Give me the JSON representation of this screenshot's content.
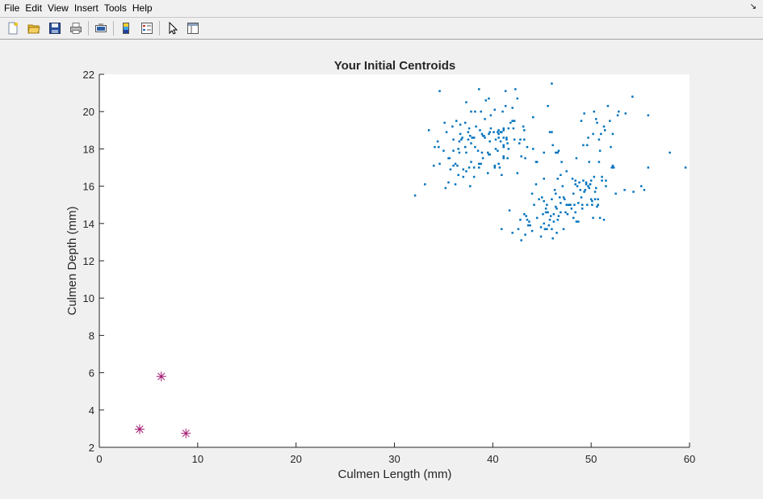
{
  "menu": {
    "file": "File",
    "edit": "Edit",
    "view": "View",
    "insert": "Insert",
    "tools": "Tools",
    "help": "Help"
  },
  "toolbar": {
    "items": [
      "new-figure",
      "open-file",
      "save-figure",
      "print-figure",
      "link-plot",
      "insert-colorbar",
      "insert-legend",
      "edit-plot",
      "property-inspector"
    ]
  },
  "chart_data": {
    "type": "scatter",
    "title": "Your Initial Centroids",
    "xlabel": "Culmen Length (mm)",
    "ylabel": "Culmen Depth (mm)",
    "xlim": [
      0,
      60
    ],
    "ylim": [
      2,
      22
    ],
    "xticks": [
      0,
      10,
      20,
      30,
      40,
      50,
      60
    ],
    "yticks": [
      2,
      4,
      6,
      8,
      10,
      12,
      14,
      16,
      18,
      20,
      22
    ],
    "grid": false,
    "legend": "none",
    "series": [
      {
        "marker": "point",
        "color": "#0072bd",
        "points": [
          [
            32.1,
            15.5
          ],
          [
            33.1,
            16.1
          ],
          [
            33.5,
            19.0
          ],
          [
            34.0,
            17.1
          ],
          [
            34.1,
            18.1
          ],
          [
            34.4,
            18.4
          ],
          [
            34.5,
            18.1
          ],
          [
            34.6,
            21.1
          ],
          [
            34.6,
            17.2
          ],
          [
            35.0,
            17.9
          ],
          [
            35.1,
            19.4
          ],
          [
            35.2,
            15.9
          ],
          [
            35.3,
            18.9
          ],
          [
            35.5,
            17.5
          ],
          [
            35.5,
            16.2
          ],
          [
            35.6,
            17.5
          ],
          [
            35.7,
            16.9
          ],
          [
            35.9,
            19.2
          ],
          [
            36.0,
            18.5
          ],
          [
            36.0,
            17.9
          ],
          [
            36.0,
            17.1
          ],
          [
            36.2,
            16.1
          ],
          [
            36.2,
            17.2
          ],
          [
            36.3,
            19.5
          ],
          [
            36.4,
            17.1
          ],
          [
            36.5,
            18.0
          ],
          [
            36.5,
            16.6
          ],
          [
            36.6,
            18.4
          ],
          [
            36.6,
            17.8
          ],
          [
            36.7,
            19.3
          ],
          [
            36.7,
            18.8
          ],
          [
            36.8,
            18.5
          ],
          [
            36.9,
            18.6
          ],
          [
            37.0,
            16.9
          ],
          [
            37.0,
            16.5
          ],
          [
            37.2,
            18.1
          ],
          [
            37.2,
            19.4
          ],
          [
            37.3,
            20.5
          ],
          [
            37.3,
            17.8
          ],
          [
            37.3,
            16.8
          ],
          [
            37.5,
            18.9
          ],
          [
            37.5,
            18.5
          ],
          [
            37.6,
            19.1
          ],
          [
            37.6,
            17.0
          ],
          [
            37.7,
            18.7
          ],
          [
            37.7,
            16.0
          ],
          [
            37.8,
            18.3
          ],
          [
            37.8,
            17.3
          ],
          [
            37.8,
            20.0
          ],
          [
            37.9,
            18.6
          ],
          [
            38.1,
            18.6
          ],
          [
            38.1,
            17.0
          ],
          [
            38.1,
            16.5
          ],
          [
            38.2,
            18.1
          ],
          [
            38.2,
            20.0
          ],
          [
            38.3,
            19.2
          ],
          [
            38.5,
            17.9
          ],
          [
            38.6,
            21.2
          ],
          [
            38.6,
            17.2
          ],
          [
            38.6,
            17.0
          ],
          [
            38.7,
            19.0
          ],
          [
            38.8,
            17.2
          ],
          [
            38.8,
            20.0
          ],
          [
            38.9,
            18.8
          ],
          [
            38.9,
            17.8
          ],
          [
            39.0,
            17.5
          ],
          [
            39.0,
            18.7
          ],
          [
            39.1,
            18.7
          ],
          [
            39.2,
            19.6
          ],
          [
            39.2,
            18.6
          ],
          [
            39.3,
            20.6
          ],
          [
            39.5,
            16.7
          ],
          [
            39.5,
            17.8
          ],
          [
            39.6,
            17.7
          ],
          [
            39.6,
            18.8
          ],
          [
            39.6,
            20.7
          ],
          [
            39.7,
            18.4
          ],
          [
            39.7,
            17.7
          ],
          [
            39.7,
            18.9
          ],
          [
            39.8,
            19.1
          ],
          [
            39.8,
            19.8
          ],
          [
            40.1,
            18.9
          ],
          [
            40.2,
            17.0
          ],
          [
            40.2,
            17.1
          ],
          [
            40.2,
            20.1
          ],
          [
            40.3,
            18.0
          ],
          [
            40.3,
            18.5
          ],
          [
            40.5,
            18.9
          ],
          [
            40.5,
            17.9
          ],
          [
            40.6,
            18.6
          ],
          [
            40.6,
            18.8
          ],
          [
            40.6,
            17.2
          ],
          [
            40.6,
            19.0
          ],
          [
            40.7,
            17.0
          ],
          [
            40.8,
            18.4
          ],
          [
            40.8,
            18.9
          ],
          [
            40.9,
            18.9
          ],
          [
            40.9,
            16.6
          ],
          [
            41.0,
            20.0
          ],
          [
            41.1,
            17.6
          ],
          [
            41.1,
            18.2
          ],
          [
            41.1,
            19.1
          ],
          [
            41.1,
            18.1
          ],
          [
            41.1,
            17.5
          ],
          [
            41.1,
            19.0
          ],
          [
            41.1,
            18.6
          ],
          [
            41.3,
            20.3
          ],
          [
            41.3,
            21.1
          ],
          [
            41.4,
            18.5
          ],
          [
            41.4,
            18.6
          ],
          [
            41.5,
            17.5
          ],
          [
            41.5,
            18.3
          ],
          [
            41.6,
            18.0
          ],
          [
            41.6,
            19.1
          ],
          [
            41.8,
            19.4
          ],
          [
            42.0,
            20.2
          ],
          [
            42.0,
            19.5
          ],
          [
            42.1,
            19.1
          ],
          [
            42.2,
            18.5
          ],
          [
            42.2,
            19.5
          ],
          [
            42.3,
            21.2
          ],
          [
            42.5,
            20.7
          ],
          [
            42.7,
            18.3
          ],
          [
            42.8,
            18.5
          ],
          [
            42.9,
            17.6
          ],
          [
            43.1,
            19.2
          ],
          [
            43.2,
            18.5
          ],
          [
            43.2,
            19.0
          ],
          [
            43.3,
            17.5
          ],
          [
            43.5,
            18.1
          ],
          [
            44.1,
            19.7
          ],
          [
            44.1,
            18.0
          ],
          [
            44.5,
            17.3
          ],
          [
            45.2,
            17.8
          ],
          [
            45.6,
            20.3
          ],
          [
            45.8,
            18.9
          ],
          [
            46.0,
            21.5
          ],
          [
            46.0,
            18.9
          ],
          [
            46.1,
            18.2
          ],
          [
            46.4,
            17.8
          ],
          [
            46.6,
            17.8
          ],
          [
            46.7,
            17.9
          ],
          [
            46.9,
            16.6
          ],
          [
            47.0,
            17.3
          ],
          [
            47.5,
            16.8
          ],
          [
            48.1,
            16.4
          ],
          [
            48.2,
            14.3
          ],
          [
            48.4,
            16.3
          ],
          [
            48.5,
            17.5
          ],
          [
            48.7,
            14.1
          ],
          [
            49.0,
            19.5
          ],
          [
            49.1,
            14.8
          ],
          [
            49.2,
            18.2
          ],
          [
            49.3,
            19.9
          ],
          [
            49.5,
            16.2
          ],
          [
            49.6,
            18.2
          ],
          [
            49.7,
            18.6
          ],
          [
            49.8,
            17.3
          ],
          [
            49.9,
            16.1
          ],
          [
            50.0,
            15.3
          ],
          [
            50.1,
            15.0
          ],
          [
            50.2,
            18.8
          ],
          [
            50.3,
            20.0
          ],
          [
            50.4,
            15.3
          ],
          [
            50.5,
            19.6
          ],
          [
            50.6,
            19.4
          ],
          [
            50.7,
            15.0
          ],
          [
            50.8,
            18.5
          ],
          [
            50.9,
            17.9
          ],
          [
            51.0,
            18.8
          ],
          [
            51.1,
            16.5
          ],
          [
            51.3,
            19.2
          ],
          [
            51.4,
            19.0
          ],
          [
            51.5,
            16.3
          ],
          [
            51.7,
            20.3
          ],
          [
            51.9,
            19.5
          ],
          [
            52.0,
            18.1
          ],
          [
            52.2,
            18.8
          ],
          [
            52.5,
            15.6
          ],
          [
            52.7,
            19.8
          ],
          [
            52.8,
            20.0
          ],
          [
            53.4,
            15.8
          ],
          [
            53.5,
            19.9
          ],
          [
            54.2,
            20.8
          ],
          [
            55.1,
            16.0
          ],
          [
            55.8,
            19.8
          ],
          [
            58.0,
            17.8
          ],
          [
            59.6,
            17.0
          ],
          [
            42.5,
            16.7
          ],
          [
            43.3,
            13.4
          ],
          [
            43.5,
            14.2
          ],
          [
            44.4,
            17.3
          ],
          [
            45.1,
            14.5
          ],
          [
            45.4,
            14.6
          ],
          [
            45.5,
            13.7
          ],
          [
            45.7,
            13.9
          ],
          [
            46.1,
            13.2
          ],
          [
            46.2,
            14.5
          ],
          [
            46.5,
            13.5
          ],
          [
            46.6,
            14.2
          ],
          [
            46.8,
            15.4
          ],
          [
            47.2,
            13.7
          ],
          [
            47.6,
            14.5
          ],
          [
            48.2,
            15.6
          ],
          [
            48.5,
            14.1
          ],
          [
            48.7,
            15.1
          ],
          [
            49.1,
            15.0
          ],
          [
            49.5,
            16.1
          ],
          [
            49.8,
            15.9
          ],
          [
            50.0,
            16.3
          ],
          [
            50.4,
            15.7
          ],
          [
            50.5,
            15.9
          ],
          [
            50.8,
            17.3
          ],
          [
            51.1,
            16.3
          ],
          [
            52.2,
            17.1
          ],
          [
            52.3,
            17.0
          ],
          [
            54.3,
            15.7
          ],
          [
            55.8,
            17.0
          ],
          [
            44.0,
            13.6
          ],
          [
            44.9,
            13.3
          ],
          [
            45.0,
            15.4
          ],
          [
            45.2,
            16.4
          ],
          [
            46.3,
            15.8
          ],
          [
            46.5,
            14.8
          ],
          [
            47.3,
            15.3
          ],
          [
            47.7,
            15.0
          ],
          [
            48.4,
            14.6
          ],
          [
            49.6,
            15.0
          ],
          [
            50.2,
            14.3
          ],
          [
            51.3,
            14.2
          ],
          [
            52.1,
            17.0
          ],
          [
            43.8,
            13.9
          ],
          [
            44.5,
            14.3
          ],
          [
            45.3,
            13.7
          ],
          [
            45.9,
            14.4
          ],
          [
            46.4,
            15.6
          ],
          [
            47.4,
            14.6
          ],
          [
            48.6,
            16.0
          ],
          [
            49.4,
            15.8
          ],
          [
            50.9,
            14.3
          ],
          [
            42.9,
            13.1
          ],
          [
            43.6,
            13.9
          ],
          [
            44.4,
            16.1
          ],
          [
            45.4,
            14.8
          ],
          [
            45.8,
            14.2
          ],
          [
            46.9,
            14.6
          ],
          [
            47.8,
            15.0
          ],
          [
            48.8,
            16.2
          ],
          [
            49.9,
            16.1
          ],
          [
            41.7,
            14.7
          ],
          [
            42.0,
            13.5
          ],
          [
            42.8,
            14.2
          ],
          [
            43.2,
            14.5
          ],
          [
            44.0,
            15.6
          ],
          [
            44.9,
            13.8
          ],
          [
            45.5,
            15.0
          ],
          [
            46.0,
            15.3
          ],
          [
            46.2,
            14.1
          ],
          [
            46.7,
            14.4
          ],
          [
            47.5,
            15.0
          ],
          [
            48.0,
            14.8
          ],
          [
            48.9,
            15.8
          ],
          [
            49.3,
            15.7
          ],
          [
            50.1,
            15.2
          ],
          [
            50.6,
            14.9
          ],
          [
            40.9,
            13.7
          ],
          [
            42.6,
            13.7
          ],
          [
            43.4,
            14.4
          ],
          [
            44.2,
            15.0
          ],
          [
            45.2,
            14.0
          ],
          [
            45.6,
            14.6
          ],
          [
            46.0,
            13.7
          ],
          [
            46.4,
            14.9
          ],
          [
            46.9,
            15.1
          ],
          [
            47.2,
            15.4
          ],
          [
            47.9,
            15.0
          ],
          [
            48.3,
            15.0
          ],
          [
            49.0,
            15.4
          ],
          [
            49.7,
            16.0
          ],
          [
            50.7,
            15.3
          ],
          [
            51.5,
            16.0
          ],
          [
            55.4,
            15.8
          ],
          [
            46.6,
            16.4
          ],
          [
            47.1,
            16.0
          ],
          [
            48.4,
            16.1
          ],
          [
            49.2,
            16.3
          ],
          [
            50.3,
            16.5
          ],
          [
            45.2,
            15.2
          ],
          [
            44.7,
            15.3
          ],
          [
            43.7,
            14.1
          ]
        ]
      },
      {
        "marker": "asterisk",
        "color": "#a2176f",
        "points": [
          [
            4.1,
            2.97
          ],
          [
            6.3,
            5.8
          ],
          [
            8.8,
            2.75
          ]
        ]
      }
    ]
  }
}
